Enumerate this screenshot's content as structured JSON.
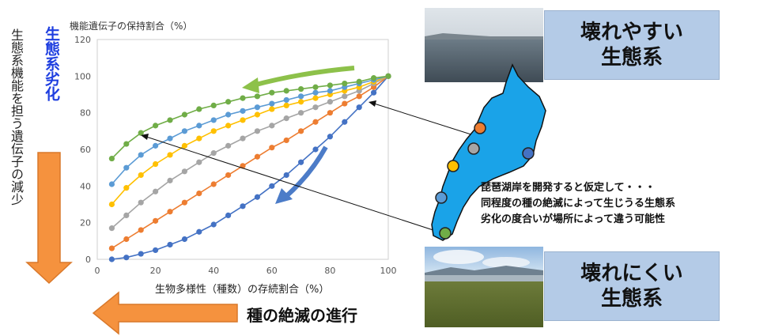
{
  "side_labels": {
    "vertical_text": "生態系機能を担う遺伝子の減少",
    "degradation": "生態系劣化"
  },
  "bottom_label": "種の絶滅の進行",
  "fragile_label": [
    "壊れやすい",
    "生態系"
  ],
  "resilient_label": [
    "壊れにくい",
    "生態系"
  ],
  "note_lines": [
    "琵琶湖岸を開発すると仮定して・・・",
    "同程度の種の絶滅によって生じうる生態系",
    "劣化の度合いが場所によって違う可能性"
  ],
  "colors": {
    "lake": "#1aa3e8",
    "orange_arrow": "#f5923e",
    "green_arrow": "#8dc14a",
    "blue_arrow": "#4c7cc8"
  },
  "lake_points": [
    {
      "color": "#ed7d31"
    },
    {
      "color": "#a5a5a5"
    },
    {
      "color": "#ffc000"
    },
    {
      "color": "#4472c4"
    },
    {
      "color": "#5b9bd5"
    },
    {
      "color": "#70ad47"
    }
  ],
  "chart_data": {
    "type": "line",
    "title": "機能遺伝子の保持割合（%）",
    "xlabel": "生物多様性（種数）の存続割合（%）",
    "ylabel": "",
    "xlim": [
      0,
      100
    ],
    "ylim": [
      0,
      120
    ],
    "xticks": [
      0,
      20,
      40,
      60,
      80,
      100
    ],
    "yticks": [
      0,
      20,
      40,
      60,
      80,
      100,
      120
    ],
    "grid": false,
    "x": [
      5,
      10,
      15,
      20,
      25,
      30,
      35,
      40,
      45,
      50,
      55,
      60,
      65,
      70,
      75,
      80,
      85,
      90,
      95,
      100
    ],
    "series": [
      {
        "color": "#4472c4",
        "values": [
          0,
          1,
          3,
          5,
          8,
          11,
          15,
          19,
          24,
          29,
          34,
          40,
          46,
          53,
          60,
          67,
          75,
          83,
          91,
          100
        ]
      },
      {
        "color": "#ed7d31",
        "values": [
          6,
          11,
          16,
          21,
          26,
          31,
          36,
          41,
          46,
          51,
          56,
          61,
          65,
          70,
          75,
          80,
          85,
          89,
          94,
          100
        ]
      },
      {
        "color": "#a5a5a5",
        "values": [
          17,
          24,
          31,
          37,
          43,
          48,
          53,
          58,
          62,
          66,
          70,
          73,
          77,
          80,
          83,
          86,
          89,
          92,
          96,
          100
        ]
      },
      {
        "color": "#ffc000",
        "values": [
          30,
          39,
          46,
          52,
          57,
          62,
          66,
          70,
          73,
          76,
          79,
          82,
          84,
          86,
          88,
          90,
          92,
          94,
          97,
          100
        ]
      },
      {
        "color": "#5b9bd5",
        "values": [
          41,
          50,
          57,
          62,
          66,
          70,
          73,
          76,
          79,
          81,
          83,
          85,
          87,
          89,
          91,
          92,
          94,
          96,
          98,
          100
        ]
      },
      {
        "color": "#70ad47",
        "values": [
          55,
          63,
          69,
          73,
          76,
          79,
          82,
          84,
          86,
          88,
          89,
          91,
          92,
          93,
          94,
          95,
          96,
          97,
          99,
          100
        ]
      }
    ]
  }
}
